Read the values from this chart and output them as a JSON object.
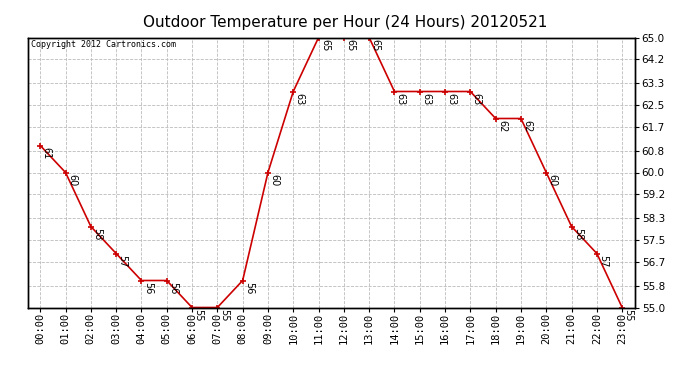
{
  "title": "Outdoor Temperature per Hour (24 Hours) 20120521",
  "copyright_text": "Copyright 2012 Cartronics.com",
  "hours": [
    "00:00",
    "01:00",
    "02:00",
    "03:00",
    "04:00",
    "05:00",
    "06:00",
    "07:00",
    "08:00",
    "09:00",
    "10:00",
    "11:00",
    "12:00",
    "13:00",
    "14:00",
    "15:00",
    "16:00",
    "17:00",
    "18:00",
    "19:00",
    "20:00",
    "21:00",
    "22:00",
    "23:00"
  ],
  "temperatures": [
    61,
    60,
    58,
    57,
    56,
    56,
    55,
    55,
    56,
    60,
    63,
    65,
    65,
    65,
    63,
    63,
    63,
    63,
    62,
    62,
    60,
    58,
    57,
    55
  ],
  "line_color": "#cc0000",
  "marker": "+",
  "marker_color": "#cc0000",
  "grid_color": "#bbbbbb",
  "bg_color": "#ffffff",
  "plot_bg_color": "#ffffff",
  "title_fontsize": 11,
  "label_fontsize": 7,
  "tick_fontsize": 7.5,
  "ylim_min": 55.0,
  "ylim_max": 65.0,
  "ytick_values": [
    55.0,
    55.8,
    56.7,
    57.5,
    58.3,
    59.2,
    60.0,
    60.8,
    61.7,
    62.5,
    63.3,
    64.2,
    65.0
  ],
  "ytick_labels": [
    "55.0",
    "55.8",
    "56.7",
    "57.5",
    "58.3",
    "59.2",
    "60.0",
    "60.8",
    "61.7",
    "62.5",
    "63.3",
    "64.2",
    "65.0"
  ]
}
